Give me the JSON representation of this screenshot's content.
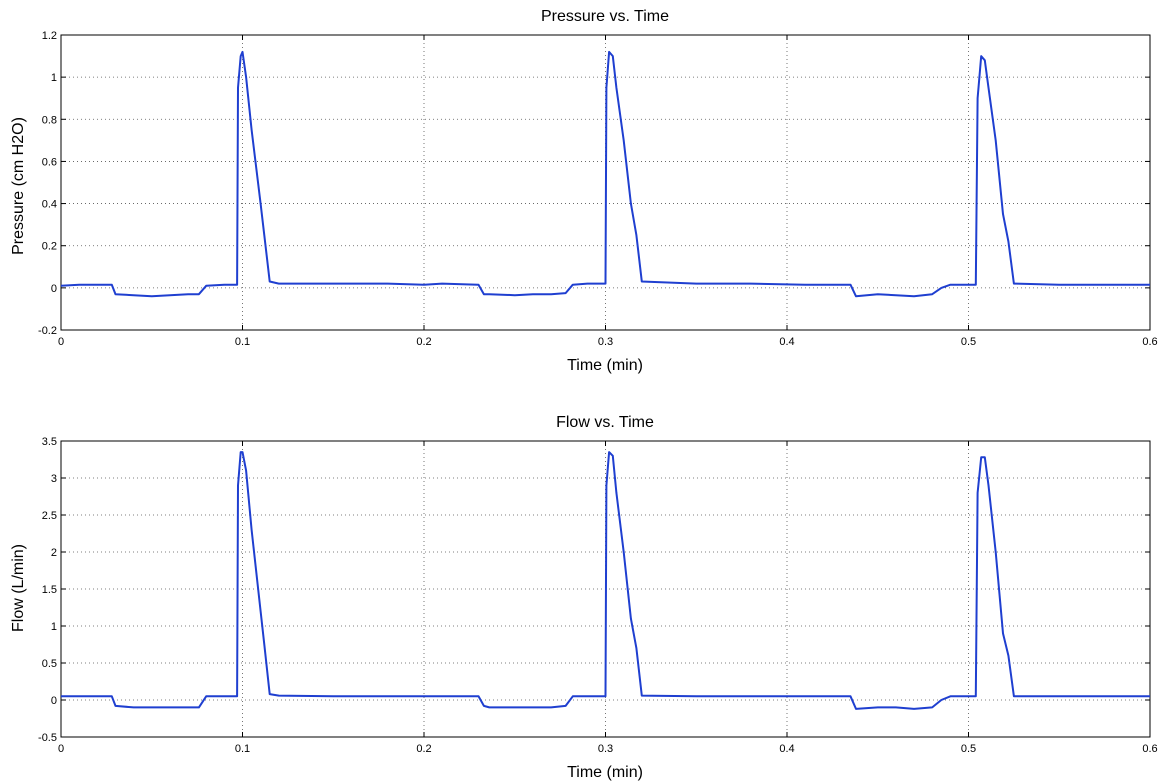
{
  "chart_data": [
    {
      "type": "line",
      "title": "Pressure vs. Time",
      "xlabel": "Time (min)",
      "ylabel": "Pressure (cm H2O)",
      "xlim": [
        0,
        0.6
      ],
      "ylim": [
        -0.2,
        1.2
      ],
      "xticks": [
        0,
        0.1,
        0.2,
        0.3,
        0.4,
        0.5,
        0.6
      ],
      "xticklabels": [
        "0",
        "0.1",
        "0.2",
        "0.3",
        "0.4",
        "0.5",
        "0.6"
      ],
      "yticks": [
        -0.2,
        0,
        0.2,
        0.4,
        0.6,
        0.8,
        1,
        1.2
      ],
      "yticklabels": [
        "-0.2",
        "0",
        "0.2",
        "0.4",
        "0.6",
        "0.8",
        "1",
        "1.2"
      ],
      "grid": true,
      "color": "#1f3fd0",
      "series": [
        {
          "x": [
            0,
            0.01,
            0.02,
            0.028,
            0.03,
            0.04,
            0.05,
            0.06,
            0.07,
            0.076,
            0.08,
            0.09,
            0.097,
            0.0975,
            0.099,
            0.1,
            0.102,
            0.105,
            0.11,
            0.112,
            0.115,
            0.12,
            0.15,
            0.18,
            0.2,
            0.21,
            0.23,
            0.233,
            0.236,
            0.25,
            0.26,
            0.27,
            0.278,
            0.282,
            0.29,
            0.3,
            0.3005,
            0.302,
            0.304,
            0.306,
            0.31,
            0.314,
            0.317,
            0.32,
            0.35,
            0.38,
            0.41,
            0.435,
            0.438,
            0.45,
            0.46,
            0.47,
            0.48,
            0.485,
            0.49,
            0.5,
            0.504,
            0.505,
            0.507,
            0.509,
            0.511,
            0.515,
            0.519,
            0.522,
            0.525,
            0.55,
            0.58,
            0.6
          ],
          "y": [
            0.01,
            0.015,
            0.015,
            0.015,
            -0.03,
            -0.035,
            -0.04,
            -0.035,
            -0.03,
            -0.03,
            0.01,
            0.015,
            0.015,
            0.95,
            1.1,
            1.12,
            1.0,
            0.75,
            0.4,
            0.25,
            0.03,
            0.02,
            0.02,
            0.02,
            0.015,
            0.02,
            0.015,
            -0.03,
            -0.03,
            -0.035,
            -0.03,
            -0.03,
            -0.025,
            0.015,
            0.02,
            0.02,
            0.95,
            1.12,
            1.1,
            0.95,
            0.7,
            0.4,
            0.25,
            0.03,
            0.02,
            0.02,
            0.015,
            0.015,
            -0.04,
            -0.03,
            -0.035,
            -0.04,
            -0.03,
            0.0,
            0.015,
            0.015,
            0.015,
            0.9,
            1.1,
            1.08,
            0.95,
            0.7,
            0.35,
            0.22,
            0.02,
            0.015,
            0.015,
            0.015
          ]
        }
      ]
    },
    {
      "type": "line",
      "title": "Flow vs. Time",
      "xlabel": "Time (min)",
      "ylabel": "Flow (L/min)",
      "xlim": [
        0,
        0.6
      ],
      "ylim": [
        -0.5,
        3.5
      ],
      "xticks": [
        0,
        0.1,
        0.2,
        0.3,
        0.4,
        0.5,
        0.6
      ],
      "xticklabels": [
        "0",
        "0.1",
        "0.2",
        "0.3",
        "0.4",
        "0.5",
        "0.6"
      ],
      "yticks": [
        -0.5,
        0,
        0.5,
        1,
        1.5,
        2,
        2.5,
        3,
        3.5
      ],
      "yticklabels": [
        "-0.5",
        "0",
        "0.5",
        "1",
        "1.5",
        "2",
        "2.5",
        "3",
        "3.5"
      ],
      "grid": true,
      "color": "#1f3fd0",
      "series": [
        {
          "x": [
            0,
            0.01,
            0.02,
            0.028,
            0.03,
            0.04,
            0.05,
            0.06,
            0.07,
            0.076,
            0.08,
            0.09,
            0.097,
            0.0975,
            0.099,
            0.1,
            0.102,
            0.105,
            0.11,
            0.112,
            0.115,
            0.12,
            0.15,
            0.18,
            0.2,
            0.21,
            0.23,
            0.233,
            0.236,
            0.25,
            0.26,
            0.27,
            0.278,
            0.282,
            0.29,
            0.3,
            0.3005,
            0.302,
            0.304,
            0.306,
            0.31,
            0.314,
            0.317,
            0.32,
            0.35,
            0.38,
            0.41,
            0.435,
            0.438,
            0.45,
            0.46,
            0.47,
            0.48,
            0.485,
            0.49,
            0.5,
            0.504,
            0.505,
            0.507,
            0.509,
            0.511,
            0.515,
            0.519,
            0.522,
            0.525,
            0.55,
            0.58,
            0.6
          ],
          "y": [
            0.05,
            0.05,
            0.05,
            0.05,
            -0.08,
            -0.1,
            -0.1,
            -0.1,
            -0.1,
            -0.1,
            0.05,
            0.05,
            0.05,
            2.9,
            3.35,
            3.35,
            3.1,
            2.3,
            1.2,
            0.75,
            0.08,
            0.06,
            0.05,
            0.05,
            0.05,
            0.05,
            0.05,
            -0.08,
            -0.1,
            -0.1,
            -0.1,
            -0.1,
            -0.08,
            0.05,
            0.05,
            0.05,
            2.9,
            3.35,
            3.3,
            2.8,
            2.0,
            1.1,
            0.7,
            0.06,
            0.05,
            0.05,
            0.05,
            0.05,
            -0.12,
            -0.1,
            -0.1,
            -0.12,
            -0.1,
            0.0,
            0.05,
            0.05,
            0.05,
            2.8,
            3.28,
            3.28,
            2.9,
            2.0,
            0.9,
            0.6,
            0.05,
            0.05,
            0.05,
            0.05
          ]
        }
      ]
    }
  ]
}
